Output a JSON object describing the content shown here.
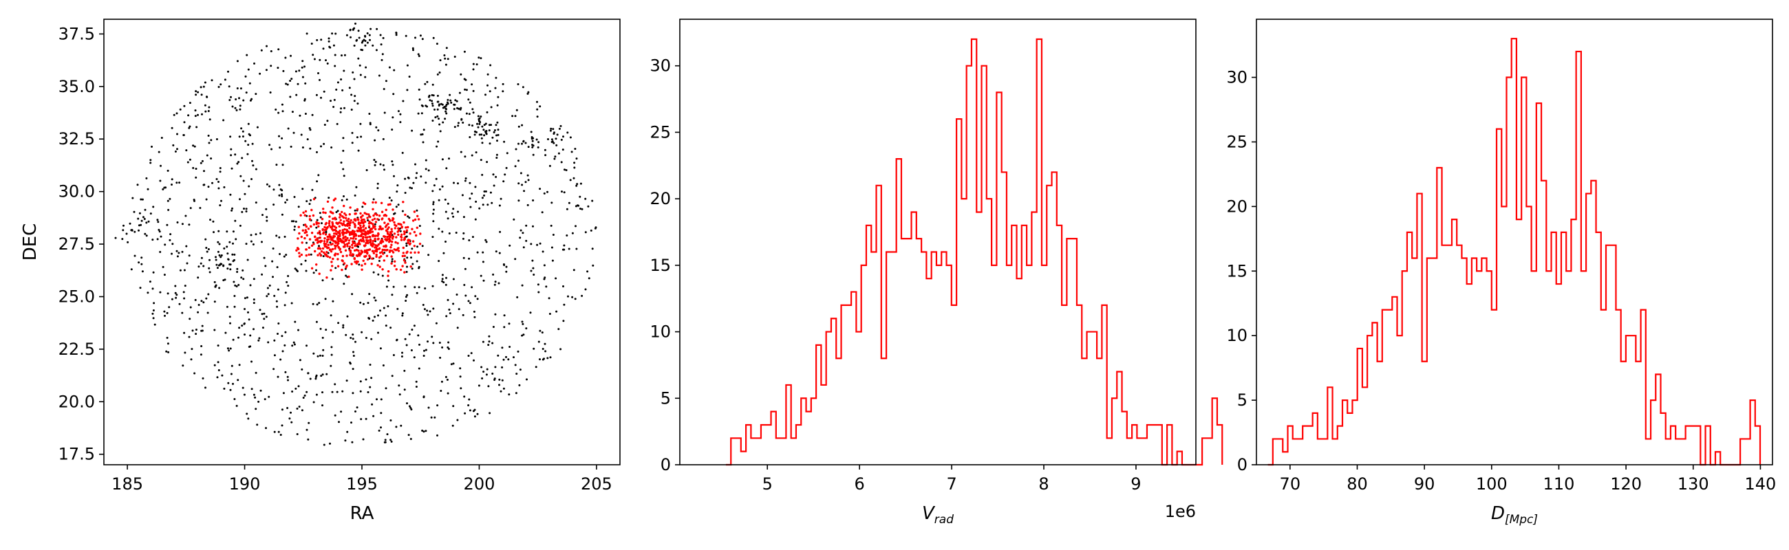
{
  "chart_data": [
    {
      "type": "scatter",
      "xlabel": "RA",
      "ylabel": "DEC",
      "xlim": [
        184.0,
        206.0
      ],
      "ylim": [
        17.0,
        38.2
      ],
      "xticks": [
        185,
        190,
        195,
        200,
        205
      ],
      "yticks": [
        17.5,
        20.0,
        22.5,
        25.0,
        27.5,
        30.0,
        32.5,
        35.0,
        37.5
      ],
      "grid": false,
      "series": [
        {
          "color": "#000000",
          "center": [
            195.0,
            27.8
          ],
          "radius_ra": 10.0,
          "radius_dec": 10.0,
          "count": 1400,
          "clumps": [
            {
              "ra": 194.9,
              "dec": 37.2,
              "n": 25
            },
            {
              "ra": 198.5,
              "dec": 34.0,
              "n": 45
            },
            {
              "ra": 200.3,
              "dec": 33.0,
              "n": 35
            },
            {
              "ra": 203.0,
              "dec": 32.6,
              "n": 30
            },
            {
              "ra": 189.0,
              "dec": 26.7,
              "n": 30
            },
            {
              "ra": 185.5,
              "dec": 28.2,
              "n": 20
            }
          ]
        },
        {
          "color": "#ff0000",
          "center": [
            194.8,
            27.9
          ],
          "spread_ra": 1.3,
          "spread_dec": 0.75,
          "ra_range": [
            192.2,
            197.5
          ],
          "dec_range": [
            25.8,
            29.8
          ],
          "count": 700
        }
      ]
    },
    {
      "type": "histogram",
      "xlabel_main": "V",
      "xlabel_sub": "rad",
      "offset_label": "1e6",
      "xlim": [
        4.05,
        9.65
      ],
      "ylim": [
        0,
        33.5
      ],
      "xticks": [
        5,
        6,
        7,
        8,
        9
      ],
      "yticks": [
        0,
        5,
        10,
        15,
        20,
        25,
        30
      ],
      "color": "#ff0000",
      "bin_start": 4.55,
      "bin_width": 0.0544,
      "counts": [
        0,
        2,
        2,
        1,
        3,
        2,
        2,
        3,
        3,
        4,
        2,
        2,
        6,
        2,
        3,
        5,
        4,
        5,
        9,
        6,
        10,
        11,
        8,
        12,
        12,
        13,
        10,
        15,
        18,
        16,
        21,
        8,
        16,
        16,
        23,
        17,
        17,
        19,
        17,
        16,
        14,
        16,
        15,
        16,
        15,
        12,
        26,
        20,
        30,
        32,
        19,
        30,
        20,
        15,
        28,
        22,
        15,
        18,
        14,
        18,
        15,
        19,
        32,
        15,
        21,
        22,
        18,
        12,
        17,
        17,
        12,
        8,
        10,
        10,
        8,
        12,
        2,
        5,
        7,
        4,
        2,
        3,
        2,
        2,
        3,
        3,
        3,
        0,
        3,
        0,
        1,
        0,
        0,
        0,
        0,
        2,
        2,
        5,
        3
      ]
    },
    {
      "type": "histogram",
      "xlabel_main": "D",
      "xlabel_sub": "[Mpc]",
      "offset_label": "",
      "xlim": [
        65.0,
        141.8
      ],
      "ylim": [
        0,
        34.5
      ],
      "xticks": [
        70,
        80,
        90,
        100,
        110,
        120,
        130,
        140
      ],
      "yticks": [
        0,
        5,
        10,
        15,
        20,
        25,
        30
      ],
      "color": "#ff0000",
      "bin_start": 66.7,
      "bin_width": 0.74,
      "counts": [
        0,
        2,
        2,
        1,
        3,
        2,
        2,
        3,
        3,
        4,
        2,
        2,
        6,
        2,
        3,
        5,
        4,
        5,
        9,
        6,
        10,
        11,
        8,
        12,
        12,
        13,
        10,
        15,
        18,
        16,
        21,
        8,
        16,
        16,
        23,
        17,
        17,
        19,
        17,
        16,
        14,
        16,
        15,
        16,
        15,
        12,
        26,
        20,
        30,
        33,
        19,
        30,
        20,
        15,
        28,
        22,
        15,
        18,
        14,
        18,
        15,
        19,
        32,
        15,
        21,
        22,
        18,
        12,
        17,
        17,
        12,
        8,
        10,
        10,
        8,
        12,
        2,
        5,
        7,
        4,
        2,
        3,
        2,
        2,
        3,
        3,
        3,
        0,
        3,
        0,
        1,
        0,
        0,
        0,
        0,
        2,
        2,
        5,
        3
      ]
    }
  ]
}
